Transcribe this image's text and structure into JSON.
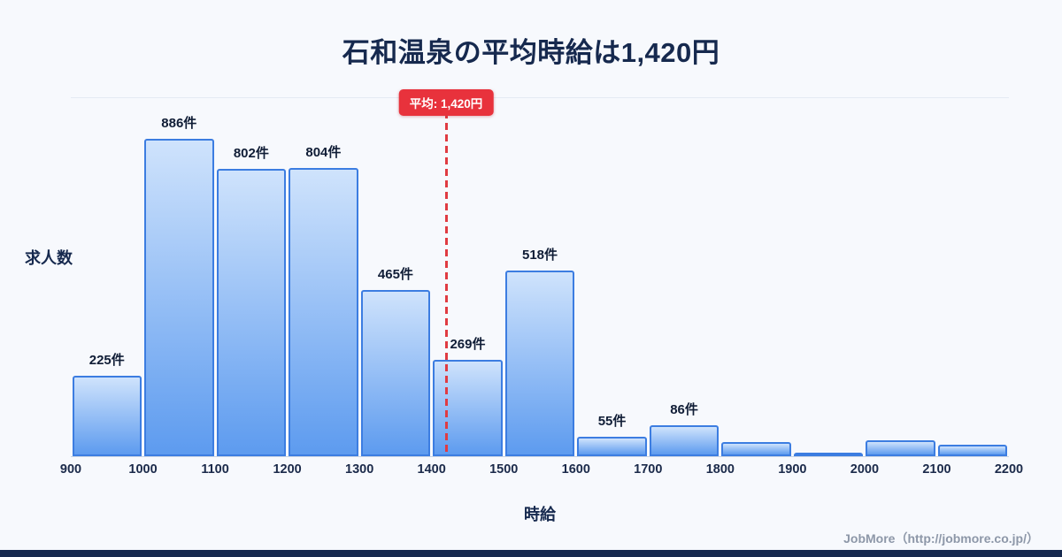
{
  "title": "石和温泉の平均時給は1,420円",
  "average_badge": "平均: 1,420円",
  "axis": {
    "ylabel": "求人数",
    "xlabel": "時給"
  },
  "footer": "JobMore（http://jobmore.co.jp/）",
  "colors": {
    "background": "#f7f9fd",
    "heading_text": "#16294e",
    "bar_fill_top": "#cfe3fc",
    "bar_fill_bottom": "#5d9bef",
    "bar_border": "#3c7de1",
    "average_line": "#e03b42",
    "badge_background": "#e8323c",
    "badge_text": "#ffffff",
    "tick_text": "#1b2a4a",
    "footer_text": "#8d97a8",
    "bottom_strip": "#16294e"
  },
  "chart_data": {
    "type": "bar",
    "title": "石和温泉の平均時給は1,420円",
    "xlabel": "時給",
    "ylabel": "求人数",
    "ylim": [
      0,
      1000
    ],
    "grid": false,
    "x_ticks": [
      "900",
      "1000",
      "1100",
      "1200",
      "1300",
      "1400",
      "1500",
      "1600",
      "1700",
      "1800",
      "1900",
      "2000",
      "2100",
      "2200"
    ],
    "average": 1420,
    "average_label": "平均: 1,420円",
    "bins": [
      {
        "x0": 900,
        "x1": 1000,
        "count": 225,
        "label": "225件"
      },
      {
        "x0": 1000,
        "x1": 1100,
        "count": 886,
        "label": "886件"
      },
      {
        "x0": 1100,
        "x1": 1200,
        "count": 802,
        "label": "802件"
      },
      {
        "x0": 1200,
        "x1": 1300,
        "count": 804,
        "label": "804件"
      },
      {
        "x0": 1300,
        "x1": 1400,
        "count": 465,
        "label": "465件"
      },
      {
        "x0": 1400,
        "x1": 1500,
        "count": 269,
        "label": "269件"
      },
      {
        "x0": 1500,
        "x1": 1600,
        "count": 518,
        "label": "518件"
      },
      {
        "x0": 1600,
        "x1": 1700,
        "count": 55,
        "label": "55件"
      },
      {
        "x0": 1700,
        "x1": 1800,
        "count": 86,
        "label": "86件"
      },
      {
        "x0": 1800,
        "x1": 1900,
        "count": 40,
        "label": ""
      },
      {
        "x0": 1900,
        "x1": 2000,
        "count": 10,
        "label": ""
      },
      {
        "x0": 2000,
        "x1": 2100,
        "count": 45,
        "label": ""
      },
      {
        "x0": 2100,
        "x1": 2200,
        "count": 33,
        "label": ""
      }
    ]
  }
}
